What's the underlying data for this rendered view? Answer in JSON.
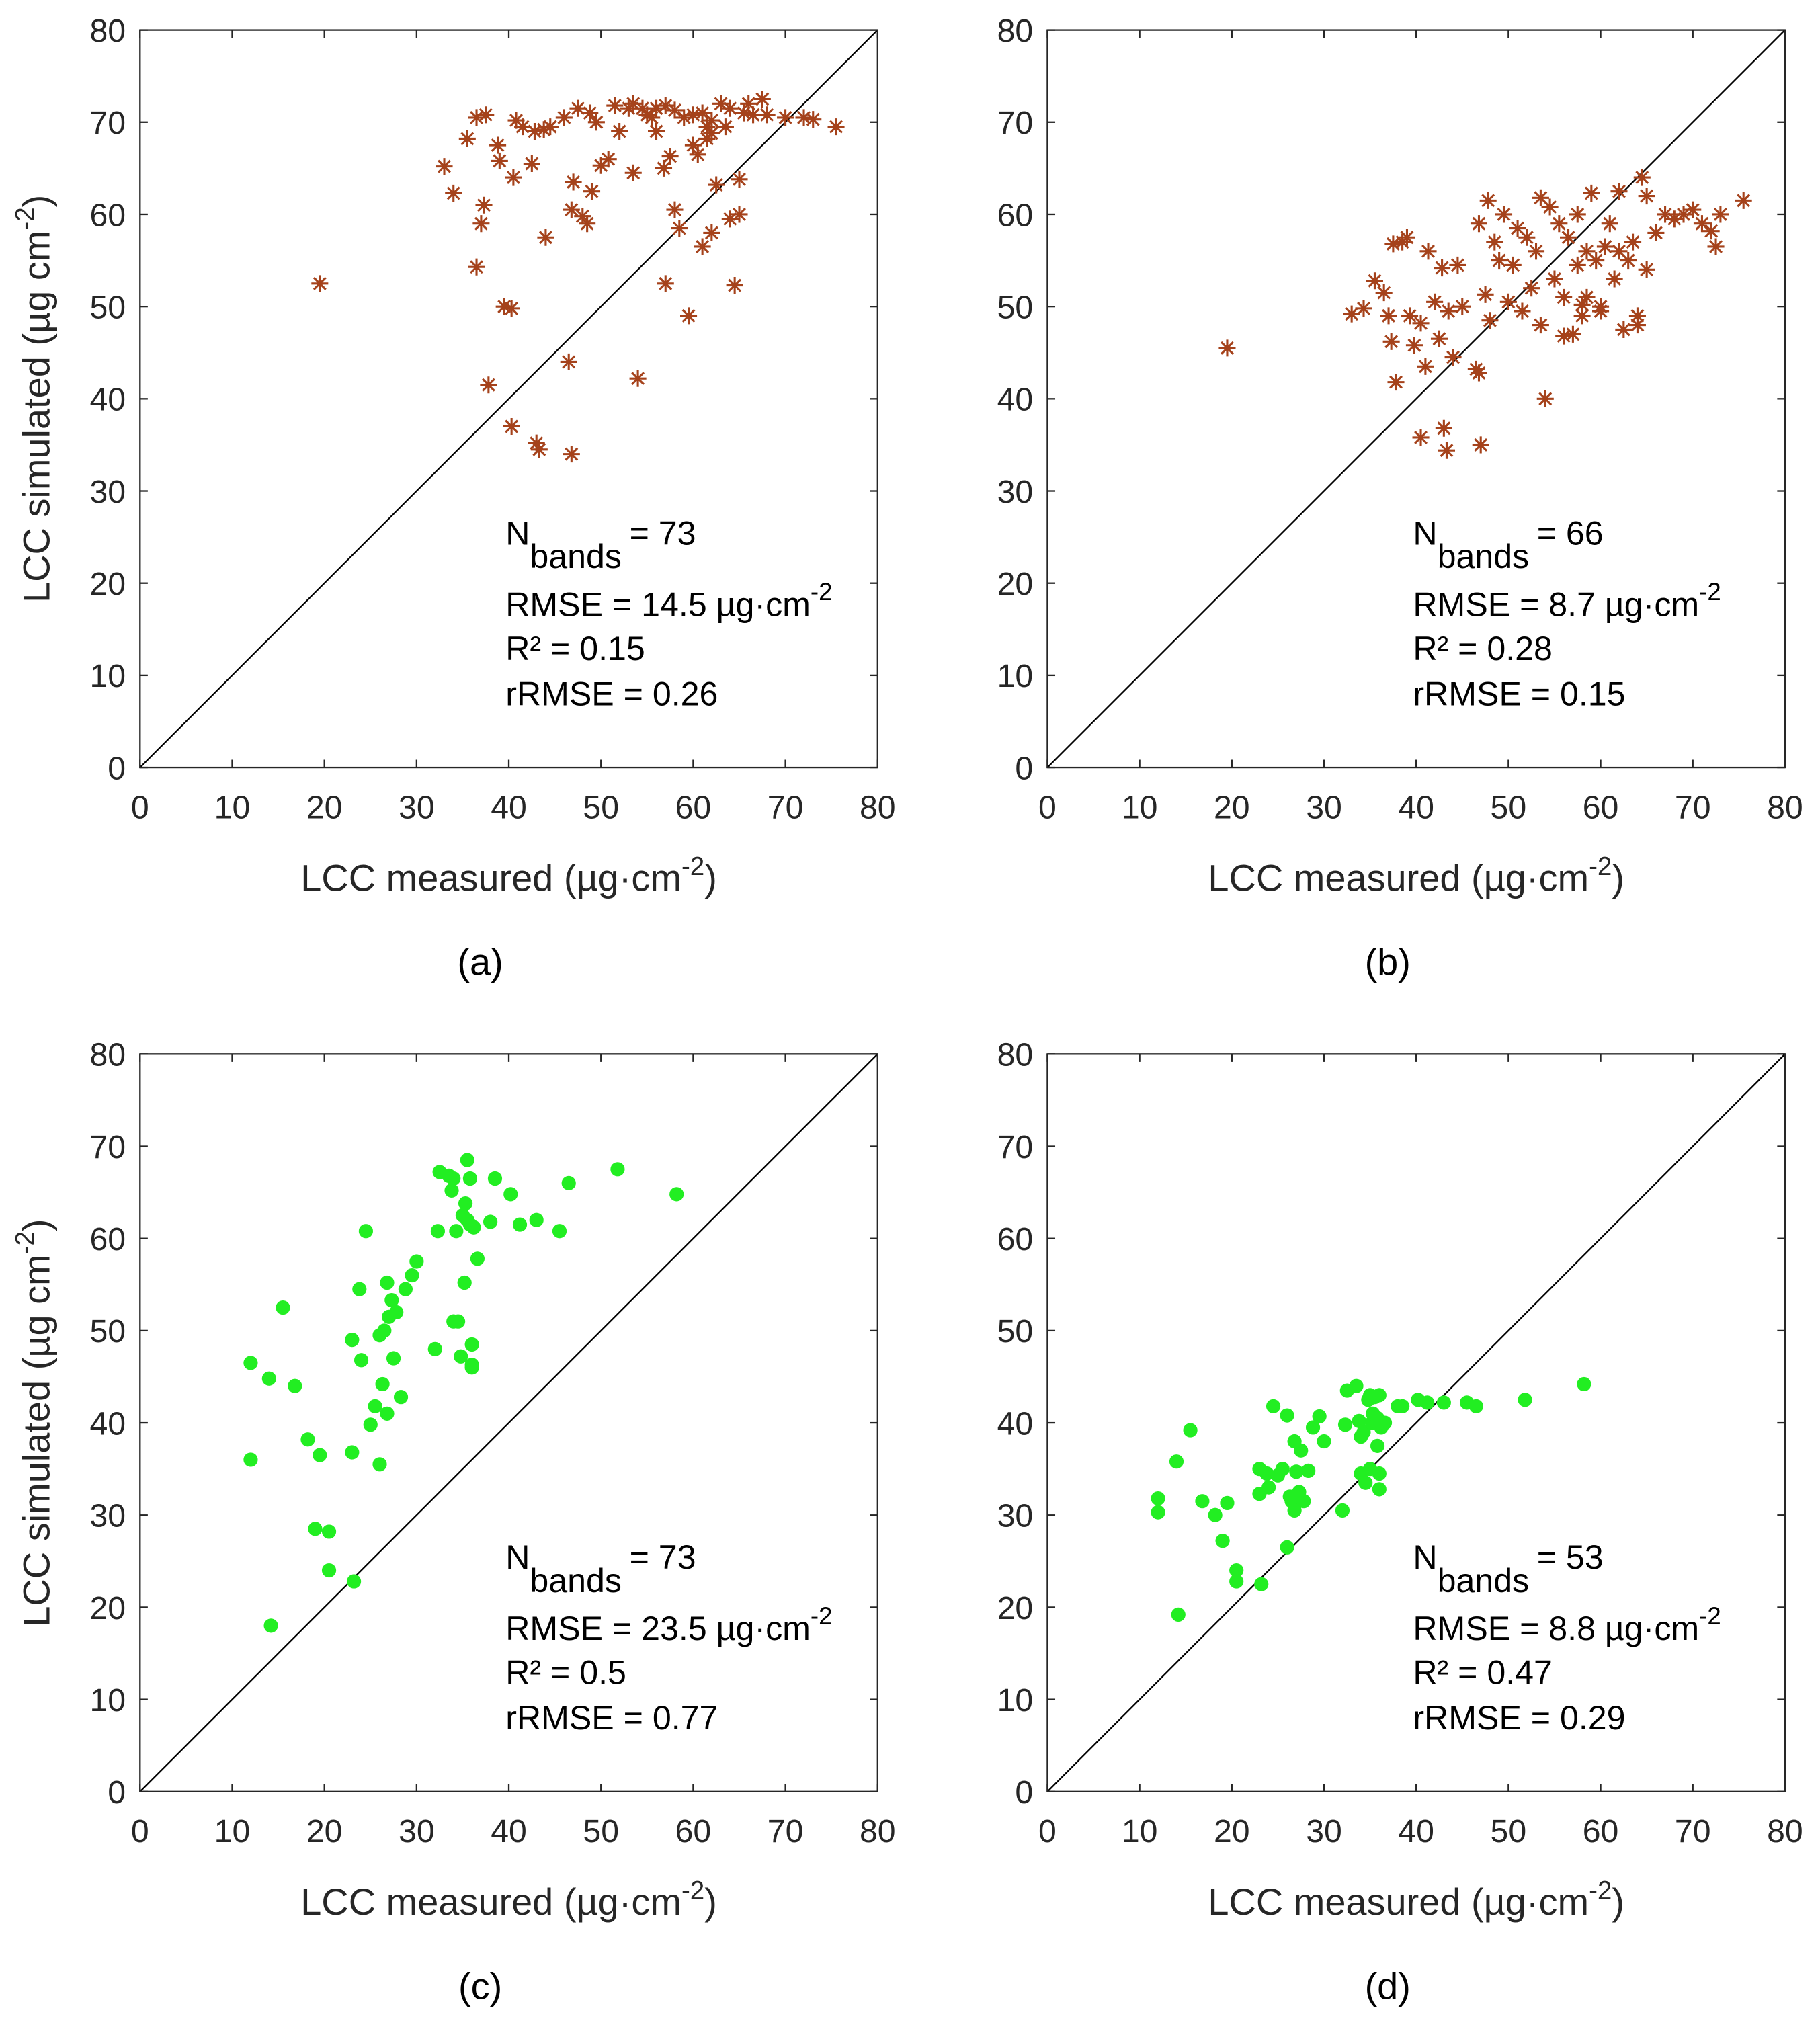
{
  "charts": [
    {
      "type": "scatter",
      "label": "(a)",
      "color": "#a5421b",
      "marker": "asterisk",
      "xlabel": [
        "LCC measured (µg·cm",
        "-2",
        ")"
      ],
      "ylabel": [
        "LCC simulated (µg cm",
        "-2",
        ")"
      ],
      "xlim": [
        0,
        80
      ],
      "ylim": [
        0,
        80
      ],
      "xticks": [
        0,
        10,
        20,
        30,
        40,
        50,
        60,
        70,
        80
      ],
      "yticks": [
        0,
        10,
        20,
        30,
        40,
        50,
        60,
        70,
        80
      ],
      "annotation": {
        "n": "N",
        "n_sub": "bands",
        "n_eq": "= 73",
        "rmse": "RMSE = 14.5 µg·cm",
        "rmse_sup": "-2",
        "r2": "R² = 0.15",
        "rrmse": "rRMSE = 0.26"
      },
      "x": [
        19.5,
        33,
        34,
        35.5,
        36.5,
        37.5,
        36.5,
        37,
        37.3,
        37.8,
        38.8,
        39,
        39.5,
        40.3,
        40.3,
        40.5,
        40.8,
        41.5,
        42.5,
        42.8,
        43,
        43.3,
        43.8,
        44,
        44.5,
        46,
        46.5,
        46.8,
        47,
        46.8,
        47.5,
        48,
        48.5,
        49,
        48.8,
        49.5,
        50,
        50.8,
        51.5,
        52,
        53,
        53.5,
        54,
        54.5,
        55.5,
        56,
        56.8,
        57,
        57.5,
        58,
        58.5,
        59,
        59.5,
        60,
        60.5,
        61,
        61.5,
        61,
        62,
        62.5,
        63,
        63.5,
        64,
        64.5,
        65,
        65,
        65.5,
        66,
        67.5,
        68,
        70,
        72,
        73,
        75.5,
        57,
        58,
        60,
        62,
        64,
        55,
        53.5,
        56,
        61.5,
        62,
        66.5
      ],
      "values": [
        52.5,
        65.2,
        62.3,
        68.2,
        70.5,
        70.8,
        54.3,
        59,
        61,
        41.5,
        67.5,
        65.8,
        50,
        49.8,
        37,
        64,
        70.2,
        69.5,
        65.5,
        69,
        35.2,
        34.5,
        69.2,
        57.5,
        69.5,
        70.5,
        44,
        60.5,
        63.5,
        34,
        71.5,
        59.8,
        59,
        62.5,
        71,
        70,
        65.3,
        66,
        71.8,
        69,
        71.5,
        64.5,
        42.2,
        71.5,
        70.5,
        69,
        65,
        52.5,
        66.3,
        60.5,
        58.5,
        70.5,
        49,
        67.5,
        66.5,
        71,
        69.5,
        56.5,
        58,
        63.2,
        72,
        69.5,
        59.5,
        52.3,
        63.8,
        60,
        71,
        72,
        72.5,
        70.8,
        70.5,
        70.5,
        70.3,
        69.5,
        71.8,
        71.3,
        70.8,
        70.2,
        71.5,
        70.8,
        72,
        71.5,
        68.2,
        68.8,
        70.8
      ]
    },
    {
      "type": "scatter",
      "label": "(b)",
      "color": "#a5421b",
      "marker": "asterisk",
      "xlabel": [
        "LCC measured (µg·cm",
        "-2",
        ")"
      ],
      "xlim": [
        0,
        80
      ],
      "ylim": [
        0,
        80
      ],
      "xticks": [
        0,
        10,
        20,
        30,
        40,
        50,
        60,
        70,
        80
      ],
      "yticks": [
        0,
        10,
        20,
        30,
        40,
        50,
        60,
        70,
        80
      ],
      "annotation": {
        "n": "N",
        "n_sub": "bands",
        "n_eq": "= 66",
        "rmse": "RMSE = 8.7 µg·cm",
        "rmse_sup": "-2",
        "r2": "R² = 0.28",
        "rrmse": "rRMSE = 0.15"
      },
      "x": [
        19.5,
        33,
        34.3,
        35.5,
        36.5,
        37,
        37.3,
        37.8,
        37.5,
        38.5,
        39,
        39.3,
        39.8,
        40.5,
        40.5,
        41,
        41.3,
        42,
        42.5,
        42.8,
        43,
        43.3,
        43.5,
        44,
        44.5,
        45,
        46.5,
        46.8,
        46.8,
        47,
        47.5,
        48,
        47.8,
        48.5,
        49,
        49.5,
        50,
        50.5,
        51,
        51.5,
        52,
        52.5,
        53,
        53.5,
        53.5,
        54,
        54.5,
        55,
        55.5,
        56,
        56.5,
        57,
        57.5,
        57.5,
        58,
        58.5,
        58.5,
        59,
        59.5,
        60,
        60.5,
        61,
        61.5,
        62,
        62.5,
        63,
        63.5,
        64,
        64.5,
        65,
        65,
        66,
        67,
        68,
        69,
        70,
        71,
        72,
        72.5,
        73,
        75.5,
        56,
        58,
        60,
        62,
        64
      ],
      "values": [
        45.5,
        49.2,
        49.8,
        52.8,
        51.5,
        49,
        46.2,
        41.8,
        56.8,
        57,
        57.5,
        49,
        45.8,
        35.8,
        48.2,
        43.5,
        56,
        50.5,
        46.5,
        54.2,
        36.8,
        34.4,
        49.5,
        44.5,
        54.5,
        50,
        43.2,
        42.8,
        59,
        35,
        51.3,
        48.5,
        61.5,
        57,
        55,
        60,
        50.5,
        54.5,
        58.5,
        49.5,
        57.5,
        52,
        56,
        48,
        61.8,
        40,
        60.8,
        53,
        59,
        51,
        57.5,
        47,
        60,
        54.5,
        49,
        51,
        56,
        62.3,
        55,
        49.5,
        56.5,
        59,
        53,
        62.5,
        47.5,
        55,
        57,
        49,
        64,
        62,
        54,
        58,
        60,
        59.5,
        60,
        60.5,
        59,
        58.2,
        56.5,
        60,
        61.5,
        46.8,
        50.2,
        50,
        56,
        48
      ]
    },
    {
      "type": "scatter",
      "label": "(c)",
      "color": "#22ee22",
      "marker": "circle",
      "xlabel": [
        "LCC measured (µg·cm",
        "-2",
        ")"
      ],
      "ylabel": [
        "LCC simulated (µg cm",
        "-2",
        ")"
      ],
      "xlim": [
        0,
        80
      ],
      "ylim": [
        0,
        80
      ],
      "xticks": [
        0,
        10,
        20,
        30,
        40,
        50,
        60,
        70,
        80
      ],
      "yticks": [
        0,
        10,
        20,
        30,
        40,
        50,
        60,
        70,
        80
      ],
      "annotation": {
        "n": "N",
        "n_sub": "bands",
        "n_eq": "= 73",
        "rmse": "RMSE = 23.5 µg·cm",
        "rmse_sup": "-2",
        "r2": "R² = 0.5",
        "rrmse": "rRMSE = 0.77"
      },
      "x": [
        12,
        12,
        14,
        14.2,
        15.5,
        16.8,
        18.2,
        19,
        19.5,
        20.5,
        20.5,
        23,
        23.2,
        23,
        23.8,
        24,
        24.5,
        25,
        25.5,
        26,
        26,
        26.3,
        26.5,
        26.8,
        26.8,
        27,
        27.3,
        27.5,
        27.8,
        28.3,
        28.8,
        29.5,
        30,
        32,
        32.3,
        32.5,
        33.5,
        33.8,
        34,
        34,
        34.3,
        34.5,
        34.8,
        35,
        35.2,
        35.3,
        35.5,
        35.8,
        35.8,
        36,
        36,
        36.2,
        36.6,
        38,
        38.5,
        40.2,
        41.2,
        43,
        45.5,
        46.5,
        51.8,
        58.2,
        36,
        35.5
      ],
      "values": [
        46.5,
        36,
        44.8,
        18,
        52.5,
        44,
        38.2,
        28.5,
        36.5,
        28.2,
        24,
        49,
        22.8,
        36.8,
        54.5,
        46.8,
        60.8,
        39.8,
        41.8,
        35.5,
        49.5,
        44.2,
        50,
        41,
        55.2,
        51.5,
        53.3,
        47,
        52,
        42.8,
        54.5,
        56,
        57.5,
        48,
        60.8,
        67.2,
        66.8,
        65.2,
        51,
        66.5,
        60.8,
        51,
        47.2,
        62.5,
        55.2,
        63.8,
        68.5,
        66.5,
        61.5,
        48.5,
        46,
        61.2,
        57.8,
        61.8,
        66.5,
        64.8,
        61.5,
        62,
        60.8,
        66,
        67.5,
        64.8,
        46.3,
        62
      ]
    },
    {
      "type": "scatter",
      "label": "(d)",
      "color": "#22ee22",
      "marker": "circle",
      "xlabel": [
        "LCC measured (µg·cm",
        "-2",
        ")"
      ],
      "xlim": [
        0,
        80
      ],
      "ylim": [
        0,
        80
      ],
      "xticks": [
        0,
        10,
        20,
        30,
        40,
        50,
        60,
        70,
        80
      ],
      "yticks": [
        0,
        10,
        20,
        30,
        40,
        50,
        60,
        70,
        80
      ],
      "annotation": {
        "n": "N",
        "n_sub": "bands",
        "n_eq": "= 53",
        "rmse": "RMSE = 8.8 µg·cm",
        "rmse_sup": "-2",
        "r2": "R² = 0.47",
        "rrmse": "rRMSE = 0.29"
      },
      "x": [
        12,
        12,
        14,
        14.2,
        15.5,
        16.8,
        18.2,
        19,
        19.5,
        20.5,
        20.5,
        23,
        23.2,
        23,
        23.8,
        24,
        24.5,
        25,
        25.5,
        26,
        26,
        26.3,
        26.5,
        26.8,
        26.8,
        27,
        27.3,
        27.5,
        27.8,
        28.3,
        28.8,
        29.5,
        30,
        32,
        32.3,
        32.5,
        33.5,
        33.8,
        34,
        34,
        34.3,
        34.5,
        34.8,
        35,
        35.2,
        35.3,
        35.5,
        35.8,
        35.8,
        36,
        36,
        36.2,
        36.6,
        38,
        38.5,
        40.2,
        41.2,
        43,
        45.5,
        46.5,
        51.8,
        58.2,
        35,
        36
      ],
      "values": [
        31.8,
        30.3,
        35.8,
        19.2,
        39.2,
        31.5,
        30,
        27.2,
        31.3,
        24,
        22.8,
        35,
        22.5,
        32.3,
        34.5,
        33,
        41.8,
        34.3,
        35,
        40.8,
        26.5,
        32,
        31.5,
        30.5,
        38,
        34.7,
        32.5,
        37,
        31.5,
        34.8,
        39.5,
        40.7,
        38,
        30.5,
        39.8,
        43.5,
        44,
        40.2,
        34.5,
        38.5,
        39,
        33.5,
        42.5,
        35,
        40,
        41,
        42.8,
        37.5,
        40.5,
        32.8,
        34.5,
        39.5,
        40,
        41.8,
        41.8,
        42.5,
        42.2,
        42.2,
        42.2,
        41.8,
        42.5,
        44.2,
        43,
        43
      ]
    }
  ]
}
